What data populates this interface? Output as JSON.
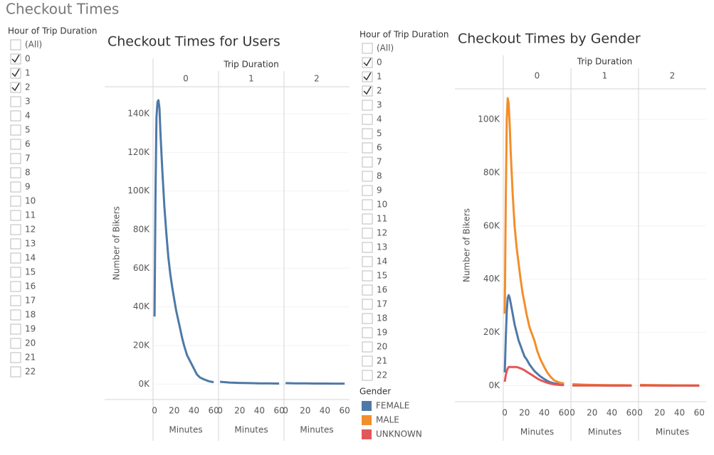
{
  "header": {
    "title": "Checkout Times"
  },
  "filters": [
    {
      "title": "Hour of Trip Duration",
      "items": [
        "(All)",
        "0",
        "1",
        "2",
        "3",
        "4",
        "5",
        "6",
        "7",
        "8",
        "9",
        "10",
        "11",
        "12",
        "13",
        "14",
        "15",
        "16",
        "17",
        "18",
        "19",
        "20",
        "21",
        "22"
      ],
      "checked": [
        false,
        true,
        true,
        true,
        false,
        false,
        false,
        false,
        false,
        false,
        false,
        false,
        false,
        false,
        false,
        false,
        false,
        false,
        false,
        false,
        false,
        false,
        false,
        false
      ]
    },
    {
      "title": "Hour of Trip Duration",
      "items": [
        "(All)",
        "0",
        "1",
        "2",
        "3",
        "4",
        "5",
        "6",
        "7",
        "8",
        "9",
        "10",
        "11",
        "12",
        "13",
        "14",
        "15",
        "16",
        "17",
        "18",
        "19",
        "20",
        "21",
        "22"
      ],
      "checked": [
        false,
        true,
        true,
        true,
        false,
        false,
        false,
        false,
        false,
        false,
        false,
        false,
        false,
        false,
        false,
        false,
        false,
        false,
        false,
        false,
        false,
        false,
        false,
        false
      ]
    }
  ],
  "chart_data": [
    {
      "type": "line",
      "title": "Checkout Times for Users",
      "column_title": "Trip Duration",
      "panels": [
        "0",
        "1",
        "2"
      ],
      "xlabel": "Minutes",
      "ylabel": "Number of Bikers",
      "xlim": [
        -1.5,
        65
      ],
      "xticks": [
        0,
        20,
        40,
        60
      ],
      "ylim": [
        -8000,
        154000
      ],
      "yticks": [
        {
          "value": 0,
          "label": "0K"
        },
        {
          "value": 20000,
          "label": "20K"
        },
        {
          "value": 40000,
          "label": "40K"
        },
        {
          "value": 60000,
          "label": "60K"
        },
        {
          "value": 80000,
          "label": "80K"
        },
        {
          "value": 100000,
          "label": "100K"
        },
        {
          "value": 120000,
          "label": "120K"
        },
        {
          "value": 140000,
          "label": "140K"
        }
      ],
      "grid": true,
      "x": [
        [
          0,
          1,
          2,
          3,
          4,
          5,
          6,
          8,
          10,
          12,
          14,
          16,
          18,
          20,
          22,
          25,
          28,
          30,
          33,
          36,
          40,
          43,
          46,
          50,
          55,
          60
        ],
        [
          0,
          10,
          20,
          30,
          40,
          50,
          60
        ],
        [
          0,
          10,
          20,
          30,
          40,
          50,
          60
        ]
      ],
      "series": [
        {
          "color": "#4e79a7",
          "values": [
            [
              35000,
              100000,
              138000,
              146000,
              147000,
              143000,
              130000,
              110000,
              92000,
              78000,
              66000,
              57000,
              50000,
              44000,
              38000,
              31000,
              24000,
              20000,
              15000,
              12000,
              8000,
              5000,
              3500,
              2500,
              1500,
              1000
            ],
            [
              1200,
              800,
              600,
              500,
              400,
              350,
              300
            ],
            [
              500,
              400,
              350,
              300,
              300,
              250,
              250
            ]
          ]
        }
      ]
    },
    {
      "type": "line",
      "title": "Checkout Times by Gender",
      "column_title": "Trip Duration",
      "panels": [
        "0",
        "1",
        "2"
      ],
      "xlabel": "Minutes",
      "ylabel": "Number of Bikers",
      "xlim": [
        -1.5,
        67
      ],
      "xticks": [
        0,
        20,
        40,
        60
      ],
      "ylim": [
        -6000,
        111500
      ],
      "yticks": [
        {
          "value": 0,
          "label": "0K"
        },
        {
          "value": 20000,
          "label": "20K"
        },
        {
          "value": 40000,
          "label": "40K"
        },
        {
          "value": 60000,
          "label": "60K"
        },
        {
          "value": 80000,
          "label": "80K"
        },
        {
          "value": 100000,
          "label": "100K"
        }
      ],
      "grid": true,
      "legend_title": "Gender",
      "x": [
        [
          0,
          1,
          2,
          3,
          4,
          5,
          6,
          8,
          10,
          12,
          14,
          16,
          18,
          20,
          22,
          25,
          28,
          30,
          33,
          36,
          40,
          43,
          46,
          50,
          55,
          60
        ],
        [
          0,
          10,
          20,
          30,
          40,
          50,
          60
        ],
        [
          0,
          10,
          20,
          30,
          40,
          50,
          60
        ]
      ],
      "series": [
        {
          "name": "FEMALE",
          "color": "#4e79a7",
          "values": [
            [
              5000,
              18000,
              28000,
              33000,
              34000,
              33000,
              31000,
              27000,
              23000,
              20000,
              17000,
              15000,
              13000,
              11000,
              10000,
              8000,
              6500,
              5500,
              4500,
              3500,
              2500,
              1800,
              1300,
              900,
              600,
              400
            ],
            [
              300,
              200,
              150,
              120,
              100,
              100,
              80
            ],
            [
              200,
              150,
              120,
              100,
              90,
              80,
              70
            ]
          ]
        },
        {
          "name": "MALE",
          "color": "#f28e2b",
          "values": [
            [
              27000,
              70000,
              100000,
              108000,
              106000,
              98000,
              88000,
              72000,
              60000,
              52000,
              46000,
              40000,
              35000,
              31000,
              27000,
              22000,
              19000,
              17000,
              13000,
              10000,
              7000,
              5000,
              3500,
              2000,
              1200,
              800
            ],
            [
              600,
              400,
              300,
              250,
              200,
              200,
              150
            ],
            [
              300,
              250,
              200,
              180,
              150,
              150,
              120
            ]
          ]
        },
        {
          "name": "UNKNOWN",
          "color": "#e15759",
          "values": [
            [
              1500,
              4000,
              5500,
              6500,
              7000,
              7000,
              7000,
              7000,
              7000,
              7000,
              6800,
              6500,
              6200,
              5800,
              5300,
              4600,
              3900,
              3400,
              2700,
              2100,
              1500,
              1100,
              800,
              500,
              300,
              200
            ],
            [
              100,
              80,
              60,
              50,
              40,
              40,
              30
            ],
            [
              60,
              50,
              40,
              30,
              30,
              30,
              20
            ]
          ]
        }
      ]
    }
  ]
}
